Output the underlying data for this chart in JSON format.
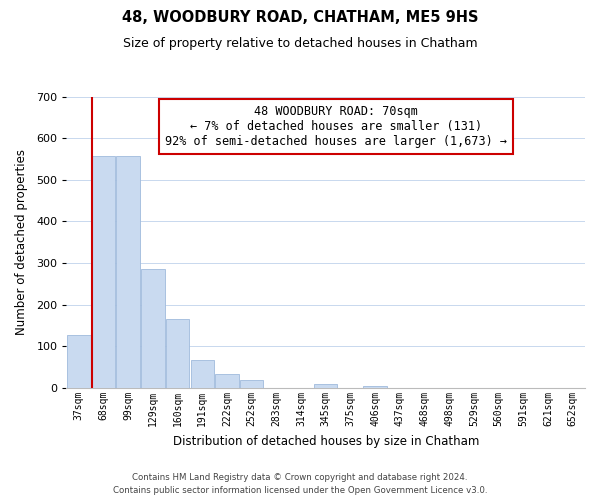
{
  "title": "48, WOODBURY ROAD, CHATHAM, ME5 9HS",
  "subtitle": "Size of property relative to detached houses in Chatham",
  "xlabel": "Distribution of detached houses by size in Chatham",
  "ylabel": "Number of detached properties",
  "bar_labels": [
    "37sqm",
    "68sqm",
    "99sqm",
    "129sqm",
    "160sqm",
    "191sqm",
    "222sqm",
    "252sqm",
    "283sqm",
    "314sqm",
    "345sqm",
    "375sqm",
    "406sqm",
    "437sqm",
    "468sqm",
    "498sqm",
    "529sqm",
    "560sqm",
    "591sqm",
    "621sqm",
    "652sqm"
  ],
  "bar_values": [
    128,
    557,
    557,
    285,
    165,
    68,
    33,
    20,
    0,
    0,
    10,
    0,
    5,
    0,
    0,
    0,
    0,
    0,
    0,
    0,
    0
  ],
  "bar_color": "#c9daf0",
  "bar_edge_color": "#a0badc",
  "highlight_bar_index": 1,
  "highlight_color": "#cc0000",
  "annotation_line1": "48 WOODBURY ROAD: 70sqm",
  "annotation_line2": "← 7% of detached houses are smaller (131)",
  "annotation_line3": "92% of semi-detached houses are larger (1,673) →",
  "annotation_box_color": "#ffffff",
  "annotation_box_edge": "#cc0000",
  "ylim": [
    0,
    700
  ],
  "yticks": [
    0,
    100,
    200,
    300,
    400,
    500,
    600,
    700
  ],
  "footer_line1": "Contains HM Land Registry data © Crown copyright and database right 2024.",
  "footer_line2": "Contains public sector information licensed under the Open Government Licence v3.0.",
  "background_color": "#ffffff",
  "grid_color": "#c8d8ee"
}
